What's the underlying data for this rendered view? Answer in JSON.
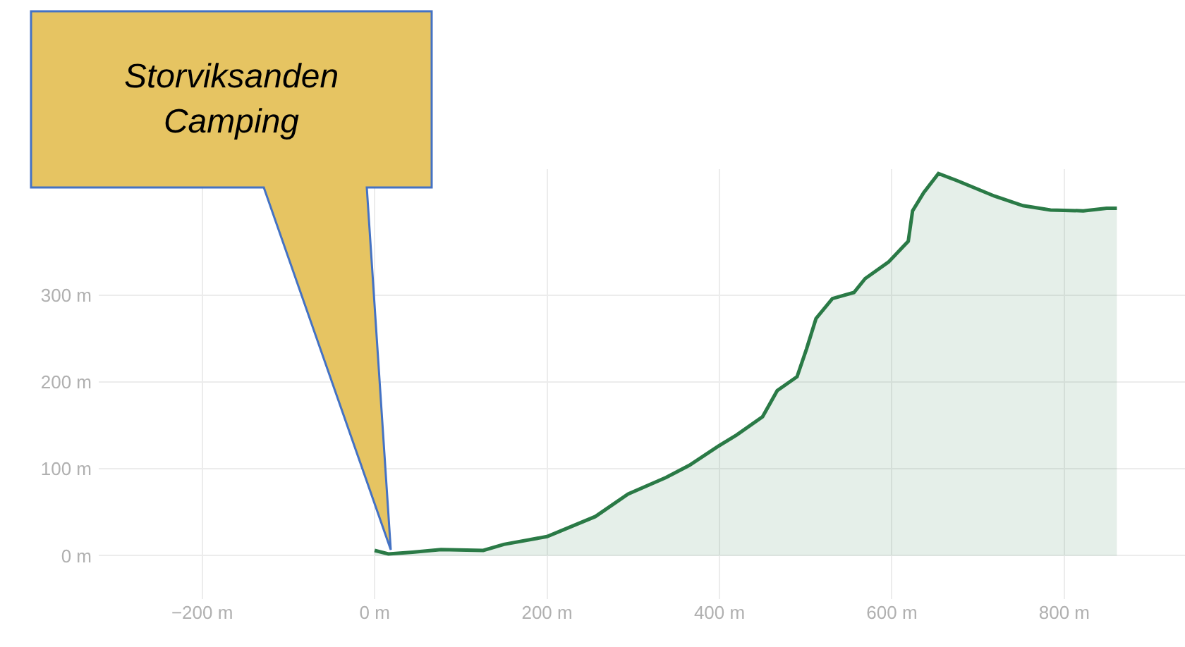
{
  "chart_data": {
    "type": "area",
    "x": [
      0,
      16,
      44,
      77,
      126,
      150,
      200,
      256,
      294,
      338,
      365,
      397,
      420,
      450,
      467,
      490,
      501,
      512,
      531,
      556,
      569,
      596,
      619,
      624,
      637,
      654,
      675,
      719,
      752,
      784,
      822,
      849,
      861
    ],
    "series": [
      {
        "color": "#2a7a46",
        "values": [
          6,
          2,
          4,
          7,
          6,
          13,
          22,
          45,
          71,
          90,
          104,
          125,
          139,
          160,
          190,
          206,
          238,
          273,
          296,
          303,
          319,
          338,
          362,
          397,
          418,
          440,
          432,
          414,
          403,
          398,
          397,
          400,
          400
        ]
      }
    ],
    "xlim": [
      -320,
      940
    ],
    "ylim": [
      -50,
      445
    ],
    "xticks": [
      {
        "value": -200,
        "label": "−200 m"
      },
      {
        "value": 0,
        "label": "0 m"
      },
      {
        "value": 200,
        "label": "200 m"
      },
      {
        "value": 400,
        "label": "400 m"
      },
      {
        "value": 600,
        "label": "600 m"
      },
      {
        "value": 800,
        "label": "800 m"
      }
    ],
    "yticks": [
      {
        "value": 0,
        "label": "0 m"
      },
      {
        "value": 100,
        "label": "100 m"
      },
      {
        "value": 200,
        "label": "200 m"
      },
      {
        "value": 300,
        "label": "300 m"
      }
    ],
    "grid": true,
    "legend": false,
    "annotations": [
      "Storviksanden Camping"
    ]
  }
}
